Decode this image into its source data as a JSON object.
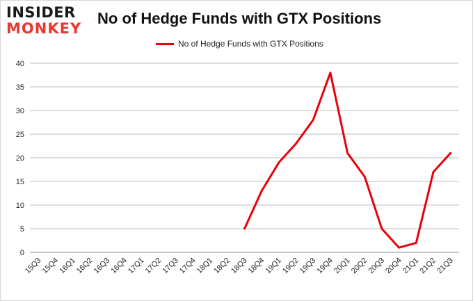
{
  "logo": {
    "line1": "INSIDER",
    "line2": "MONKEY"
  },
  "chart_data": {
    "type": "line",
    "title": "No of Hedge Funds with GTX Positions",
    "xlabel": "",
    "ylabel": "",
    "categories": [
      "15Q3",
      "15Q4",
      "16Q1",
      "16Q2",
      "16Q3",
      "16Q4",
      "17Q1",
      "17Q2",
      "17Q3",
      "17Q4",
      "18Q1",
      "18Q2",
      "18Q3",
      "18Q4",
      "19Q1",
      "19Q2",
      "19Q3",
      "19Q4",
      "20Q1",
      "20Q2",
      "20Q3",
      "20Q4",
      "21Q1",
      "21Q2",
      "21Q3"
    ],
    "series": [
      {
        "name": "No of Hedge Funds with GTX Positions",
        "color": "#e8000b",
        "values": [
          null,
          null,
          null,
          null,
          null,
          null,
          null,
          null,
          null,
          null,
          null,
          null,
          5,
          13,
          19,
          23,
          28,
          38,
          21,
          16,
          5,
          1,
          2,
          17,
          21
        ]
      }
    ],
    "ylim": [
      0,
      40
    ],
    "yticks": [
      0,
      5,
      10,
      15,
      20,
      25,
      30,
      35,
      40
    ],
    "grid": "horizontal",
    "legend_position": "top-center"
  }
}
